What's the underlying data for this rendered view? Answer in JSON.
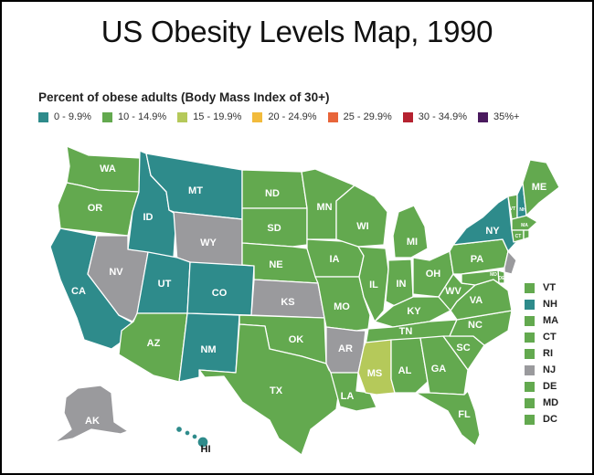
{
  "title": "US Obesity Levels Map, 1990",
  "subtitle": "Percent of obese adults (Body Mass Index of 30+)",
  "legend": [
    {
      "label": "0 - 9.9%",
      "color": "#2e8b8b"
    },
    {
      "label": "10 - 14.9%",
      "color": "#63a94f"
    },
    {
      "label": "15 - 19.9%",
      "color": "#b5c95a"
    },
    {
      "label": "20 - 24.9%",
      "color": "#f2bb3c"
    },
    {
      "label": "25 - 29.9%",
      "color": "#e8653a"
    },
    {
      "label": "30 - 34.9%",
      "color": "#b52230"
    },
    {
      "label": "35%+",
      "color": "#4a1a5e"
    }
  ],
  "nodata_color": "#9a9a9d",
  "states": {
    "WA": {
      "label": "WA",
      "category": "10 - 14.9%"
    },
    "OR": {
      "label": "OR",
      "category": "10 - 14.9%"
    },
    "CA": {
      "label": "CA",
      "category": "0 - 9.9%"
    },
    "ID": {
      "label": "ID",
      "category": "0 - 9.9%"
    },
    "NV": {
      "label": "NV",
      "category": "no data"
    },
    "MT": {
      "label": "MT",
      "category": "0 - 9.9%"
    },
    "WY": {
      "label": "WY",
      "category": "no data"
    },
    "UT": {
      "label": "UT",
      "category": "0 - 9.9%"
    },
    "CO": {
      "label": "CO",
      "category": "0 - 9.9%"
    },
    "AZ": {
      "label": "AZ",
      "category": "10 - 14.9%"
    },
    "NM": {
      "label": "NM",
      "category": "0 - 9.9%"
    },
    "ND": {
      "label": "ND",
      "category": "10 - 14.9%"
    },
    "SD": {
      "label": "SD",
      "category": "10 - 14.9%"
    },
    "NE": {
      "label": "NE",
      "category": "10 - 14.9%"
    },
    "KS": {
      "label": "KS",
      "category": "no data"
    },
    "OK": {
      "label": "OK",
      "category": "10 - 14.9%"
    },
    "TX": {
      "label": "TX",
      "category": "10 - 14.9%"
    },
    "MN": {
      "label": "MN",
      "category": "10 - 14.9%"
    },
    "IA": {
      "label": "IA",
      "category": "10 - 14.9%"
    },
    "MO": {
      "label": "MO",
      "category": "10 - 14.9%"
    },
    "AR": {
      "label": "AR",
      "category": "no data"
    },
    "LA": {
      "label": "LA",
      "category": "10 - 14.9%"
    },
    "WI": {
      "label": "WI",
      "category": "10 - 14.9%"
    },
    "IL": {
      "label": "IL",
      "category": "10 - 14.9%"
    },
    "MI": {
      "label": "MI",
      "category": "10 - 14.9%"
    },
    "IN": {
      "label": "IN",
      "category": "10 - 14.9%"
    },
    "OH": {
      "label": "OH",
      "category": "10 - 14.9%"
    },
    "KY": {
      "label": "KY",
      "category": "10 - 14.9%"
    },
    "TN": {
      "label": "TN",
      "category": "10 - 14.9%"
    },
    "MS": {
      "label": "MS",
      "category": "15 - 19.9%"
    },
    "AL": {
      "label": "AL",
      "category": "10 - 14.9%"
    },
    "GA": {
      "label": "GA",
      "category": "10 - 14.9%"
    },
    "FL": {
      "label": "FL",
      "category": "10 - 14.9%"
    },
    "SC": {
      "label": "SC",
      "category": "10 - 14.9%"
    },
    "NC": {
      "label": "NC",
      "category": "10 - 14.9%"
    },
    "VA": {
      "label": "VA",
      "category": "10 - 14.9%"
    },
    "WV": {
      "label": "WV",
      "category": "10 - 14.9%"
    },
    "PA": {
      "label": "PA",
      "category": "10 - 14.9%"
    },
    "NY": {
      "label": "NY",
      "category": "0 - 9.9%"
    },
    "ME": {
      "label": "ME",
      "category": "10 - 14.9%"
    },
    "VT": {
      "label": "VT",
      "category": "10 - 14.9%"
    },
    "NH": {
      "label": "NH",
      "category": "0 - 9.9%"
    },
    "MA": {
      "label": "MA",
      "category": "10 - 14.9%"
    },
    "CT": {
      "label": "CT",
      "category": "10 - 14.9%"
    },
    "RI": {
      "label": "RI",
      "category": "10 - 14.9%"
    },
    "NJ": {
      "label": "NJ",
      "category": "no data"
    },
    "DE": {
      "label": "DE",
      "category": "10 - 14.9%"
    },
    "MD": {
      "label": "MD",
      "category": "10 - 14.9%"
    },
    "AK": {
      "label": "AK",
      "category": "no data"
    },
    "HI": {
      "label": "HI",
      "category": "0 - 9.9%"
    }
  },
  "northeast_key": [
    {
      "label": "VT",
      "color": "#63a94f"
    },
    {
      "label": "NH",
      "color": "#2e8b8b"
    },
    {
      "label": "MA",
      "color": "#63a94f"
    },
    {
      "label": "CT",
      "color": "#63a94f"
    },
    {
      "label": "RI",
      "color": "#63a94f"
    },
    {
      "label": "NJ",
      "color": "#9a9a9d"
    },
    {
      "label": "DE",
      "color": "#63a94f"
    },
    {
      "label": "MD",
      "color": "#63a94f"
    },
    {
      "label": "DC",
      "color": "#63a94f"
    }
  ]
}
